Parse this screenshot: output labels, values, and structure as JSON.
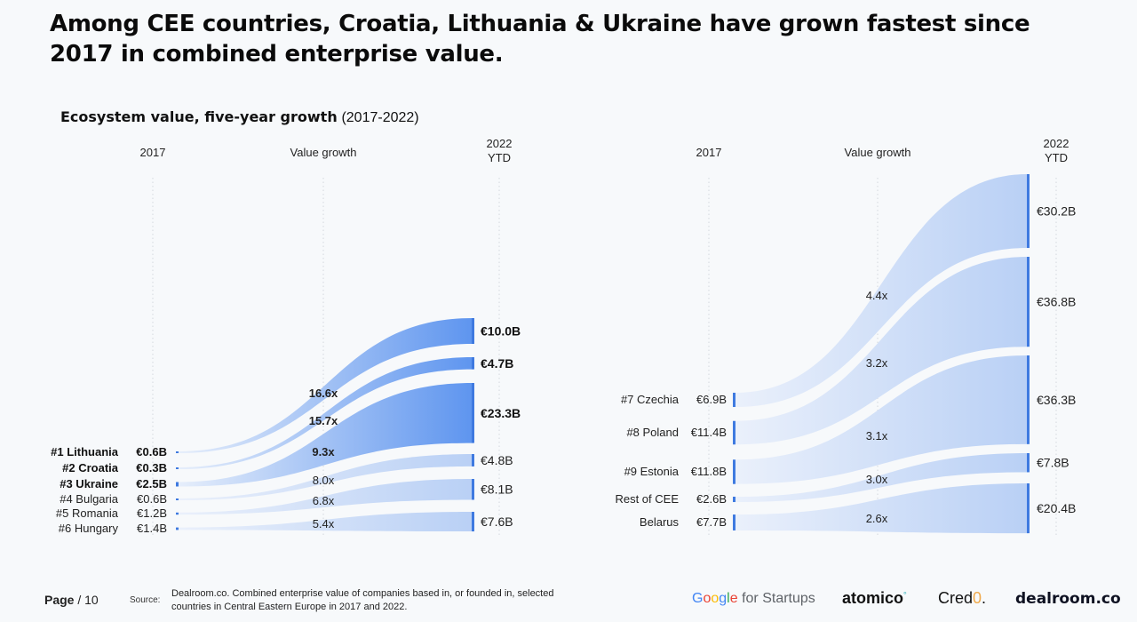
{
  "headline": "Among CEE countries, Croatia, Lithuania & Ukraine have grown fastest since 2017 in combined enterprise value.",
  "subtitle": {
    "bold": "Ecosystem value, five-year growth",
    "normal": "(2017-2022)"
  },
  "footer": {
    "page_label": "Page",
    "page_number": "/ 10",
    "source_label": "Source:",
    "source_text": "Dealroom.co. Combined enterprise value of companies based in, or founded in, selected countries in Central Eastern Europe in 2017 and 2022."
  },
  "logos": {
    "google": [
      "G",
      "o",
      "o",
      "g",
      "l",
      "e",
      " for Startups"
    ],
    "atomico": "atomico",
    "credo_prefix": "Cred",
    "credo_o": "0",
    "credo_suffix": ".",
    "dealroom": "dealroom.co"
  },
  "colors": {
    "flow_start": "#e3ecfa",
    "flow_end_light": "#b8d0f6",
    "flow_end_strong": "#5b93f0",
    "bar": "#3f7ae0"
  },
  "chart_data": [
    {
      "type": "sankey-growth",
      "column_headers": {
        "start": "2017",
        "middle": "Value growth",
        "end_line1": "2022",
        "end_line2": "YTD"
      },
      "rows": [
        {
          "label": "#1 Lithuania",
          "start": "€0.6B",
          "start_value": 0.6,
          "growth": "16.6x",
          "end": "€10.0B",
          "end_value": 10.0,
          "highlight": true
        },
        {
          "label": "#2 Croatia",
          "start": "€0.3B",
          "start_value": 0.3,
          "growth": "15.7x",
          "end": "€4.7B",
          "end_value": 4.7,
          "highlight": true
        },
        {
          "label": "#3 Ukraine",
          "start": "€2.5B",
          "start_value": 2.5,
          "growth": "9.3x",
          "end": "€23.3B",
          "end_value": 23.3,
          "highlight": true
        },
        {
          "label": "#4 Bulgaria",
          "start": "€0.6B",
          "start_value": 0.6,
          "growth": "8.0x",
          "end": "€4.8B",
          "end_value": 4.8,
          "highlight": false
        },
        {
          "label": "#5 Romania",
          "start": "€1.2B",
          "start_value": 1.2,
          "growth": "6.8x",
          "end": "€8.1B",
          "end_value": 8.1,
          "highlight": false
        },
        {
          "label": "#6 Hungary",
          "start": "€1.4B",
          "start_value": 1.4,
          "growth": "5.4x",
          "end": "€7.6B",
          "end_value": 7.6,
          "highlight": false
        }
      ]
    },
    {
      "type": "sankey-growth",
      "column_headers": {
        "start": "2017",
        "middle": "Value growth",
        "end_line1": "2022",
        "end_line2": "YTD"
      },
      "rows": [
        {
          "label": "#7 Czechia",
          "start": "€6.9B",
          "start_value": 6.9,
          "growth": "4.4x",
          "end": "€30.2B",
          "end_value": 30.2,
          "highlight": false
        },
        {
          "label": "#8 Poland",
          "start": "€11.4B",
          "start_value": 11.4,
          "growth": "3.2x",
          "end": "€36.8B",
          "end_value": 36.8,
          "highlight": false
        },
        {
          "label": "#9 Estonia",
          "start": "€11.8B",
          "start_value": 11.8,
          "growth": "3.1x",
          "end": "€36.3B",
          "end_value": 36.3,
          "highlight": false
        },
        {
          "label": "Rest of CEE",
          "start": "€2.6B",
          "start_value": 2.6,
          "growth": "3.0x",
          "end": "€7.8B",
          "end_value": 7.8,
          "highlight": false
        },
        {
          "label": "Belarus",
          "start": "€7.7B",
          "start_value": 7.7,
          "growth": "2.6x",
          "end": "€20.4B",
          "end_value": 20.4,
          "highlight": false
        }
      ]
    }
  ]
}
